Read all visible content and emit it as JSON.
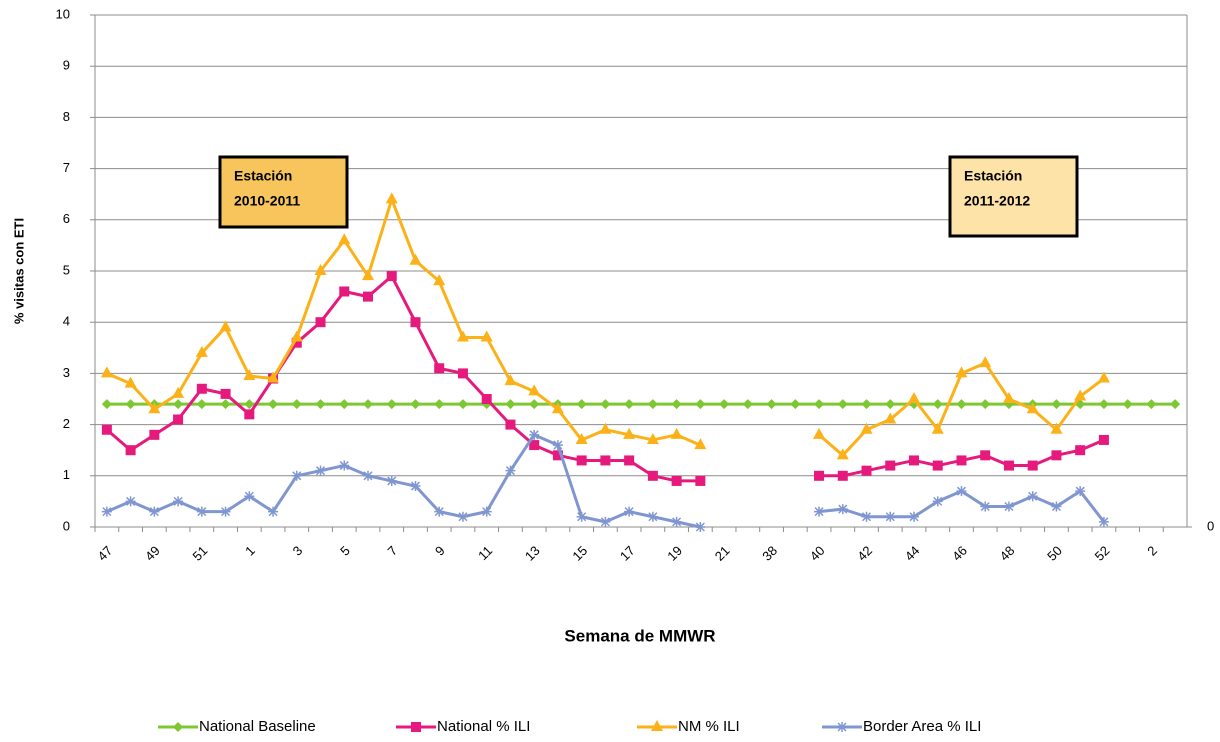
{
  "chart_data": {
    "type": "line",
    "y_label": "% visitas con ETI",
    "x_label": "Semana de MMWR",
    "categories": [
      "47",
      null,
      "49",
      null,
      "51",
      null,
      "1",
      null,
      "3",
      null,
      "5",
      null,
      "7",
      null,
      "9",
      null,
      "11",
      null,
      "13",
      null,
      "15",
      null,
      "17",
      null,
      "19",
      null,
      "21",
      null,
      "38",
      null,
      "40",
      null,
      "42",
      null,
      "44",
      null,
      "46",
      null,
      "48",
      null,
      "50",
      null,
      "52",
      null,
      "2",
      null
    ],
    "series": [
      {
        "name": "National Baseline",
        "color": "#7dc832",
        "marker": "diamond",
        "values": [
          2.4,
          2.4,
          2.4,
          2.4,
          2.4,
          2.4,
          2.4,
          2.4,
          2.4,
          2.4,
          2.4,
          2.4,
          2.4,
          2.4,
          2.4,
          2.4,
          2.4,
          2.4,
          2.4,
          2.4,
          2.4,
          2.4,
          2.4,
          2.4,
          2.4,
          2.4,
          2.4,
          2.4,
          2.4,
          2.4,
          2.4,
          2.4,
          2.4,
          2.4,
          2.4,
          2.4,
          2.4,
          2.4,
          2.4,
          2.4,
          2.4,
          2.4,
          2.4,
          2.4,
          2.4,
          2.4
        ]
      },
      {
        "name": "National % ILI",
        "color": "#e6197d",
        "marker": "square",
        "values": [
          1.9,
          1.5,
          1.8,
          2.1,
          2.7,
          2.6,
          2.2,
          2.9,
          3.6,
          4.0,
          4.6,
          4.5,
          4.9,
          4.0,
          3.1,
          3.0,
          2.5,
          2.0,
          1.6,
          1.4,
          1.3,
          1.3,
          1.3,
          1.0,
          0.9,
          0.9,
          null,
          null,
          null,
          null,
          1.0,
          1.0,
          1.1,
          1.2,
          1.3,
          1.2,
          1.3,
          1.4,
          1.2,
          1.2,
          1.4,
          1.5,
          1.7,
          null,
          null,
          null
        ]
      },
      {
        "name": "NM % ILI",
        "color": "#fbb117",
        "marker": "triangle",
        "values": [
          3.0,
          2.8,
          2.3,
          2.6,
          3.4,
          3.9,
          2.95,
          2.9,
          3.7,
          5.0,
          5.6,
          4.9,
          6.4,
          5.2,
          4.8,
          3.7,
          3.7,
          2.85,
          2.65,
          2.3,
          1.7,
          1.9,
          1.8,
          1.7,
          1.8,
          1.6,
          null,
          null,
          null,
          null,
          1.8,
          1.4,
          1.9,
          2.1,
          2.5,
          1.9,
          3.0,
          3.2,
          2.5,
          2.3,
          1.9,
          2.55,
          2.9,
          null,
          null,
          null
        ]
      },
      {
        "name": "Border Area % ILI",
        "color": "#7f96d0",
        "marker": "asterisk",
        "values": [
          0.3,
          0.5,
          0.3,
          0.5,
          0.3,
          0.3,
          0.6,
          0.3,
          1.0,
          1.1,
          1.2,
          1.0,
          0.9,
          0.8,
          0.3,
          0.2,
          0.3,
          1.1,
          1.8,
          1.6,
          0.2,
          0.1,
          0.3,
          0.2,
          0.1,
          0.0,
          null,
          null,
          null,
          null,
          0.3,
          0.35,
          0.2,
          0.2,
          0.2,
          0.5,
          0.7,
          0.4,
          0.4,
          0.6,
          0.4,
          0.7,
          0.1,
          null,
          null,
          null
        ]
      }
    ],
    "ylim": [
      0,
      10
    ],
    "yticks": [
      0,
      1,
      2,
      3,
      4,
      5,
      6,
      7,
      8,
      9,
      10
    ],
    "y2ticks": [
      0
    ],
    "grid": true,
    "legend": "bottom",
    "annotations": [
      {
        "lines": [
          "Estación",
          "2010-2011"
        ],
        "fill": "#f8c55c"
      },
      {
        "lines": [
          "Estación",
          "2011-2012"
        ],
        "fill": "#fde3a7"
      }
    ]
  }
}
